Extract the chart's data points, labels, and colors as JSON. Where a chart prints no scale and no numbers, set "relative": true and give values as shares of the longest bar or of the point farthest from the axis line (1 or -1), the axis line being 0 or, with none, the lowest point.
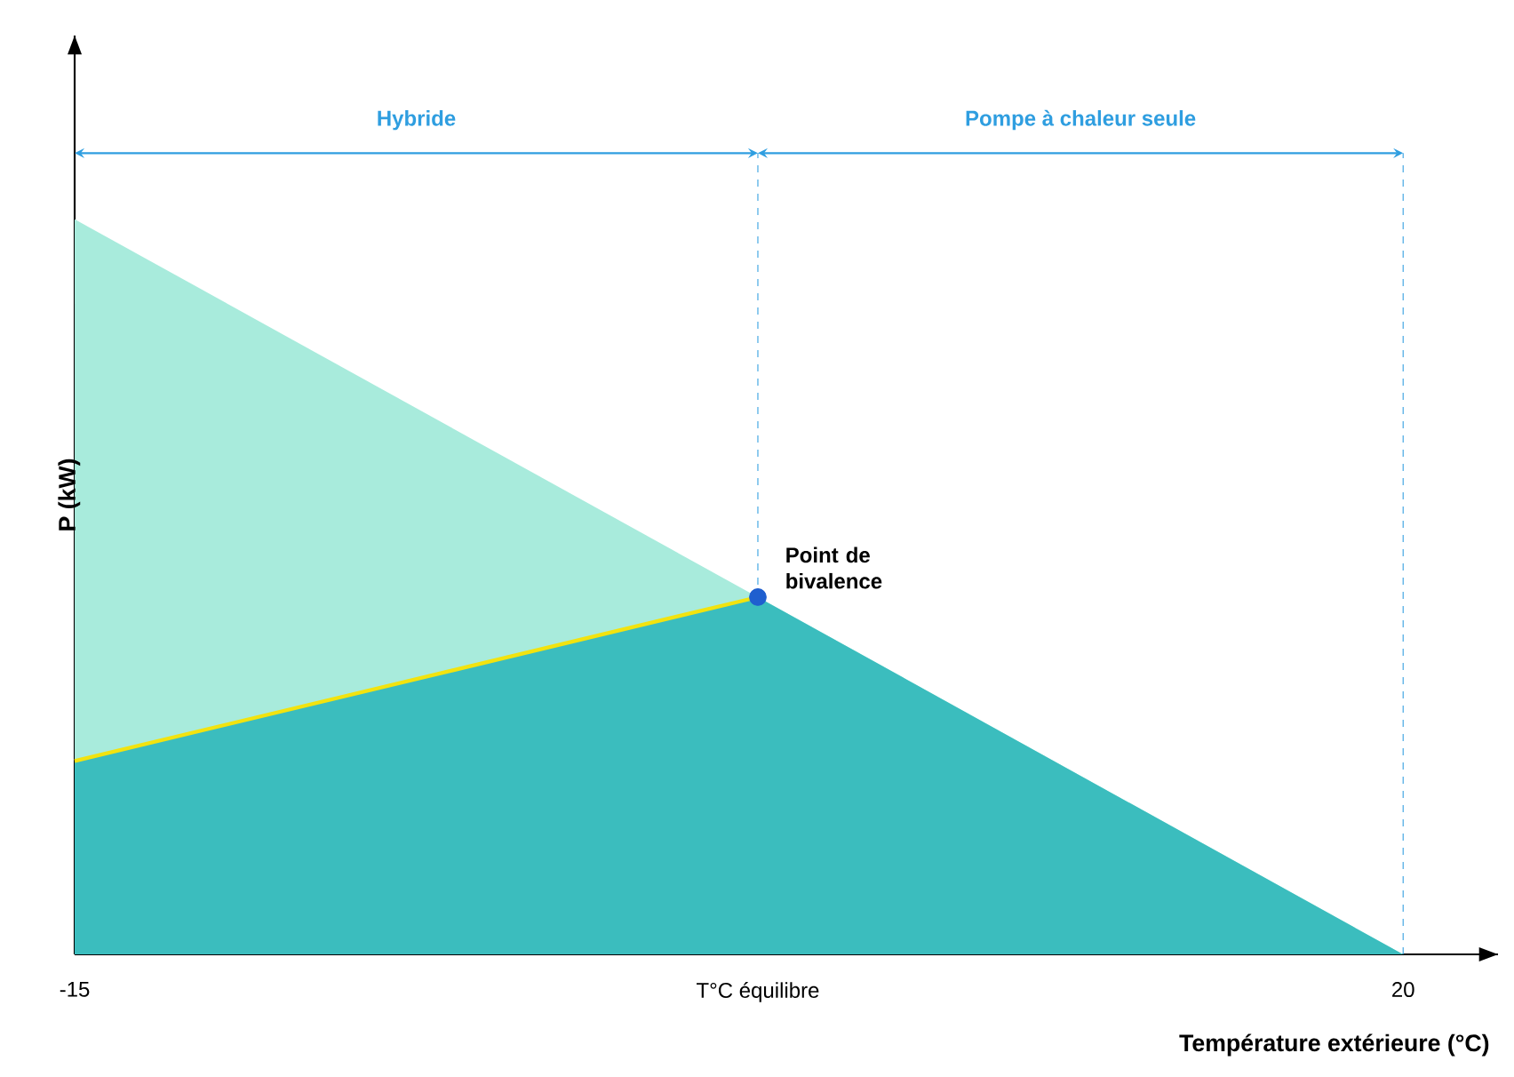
{
  "chart_data": {
    "type": "area",
    "relative": true,
    "xlabel": "Température extérieure (°C)",
    "ylabel": "P (kW)",
    "xlim": [
      -15,
      22.5
    ],
    "xticks": [
      -15,
      {
        "value": 3,
        "label": "T°C équilibre"
      },
      20
    ],
    "series": [
      {
        "color": "#a8ebdc",
        "x": [
          -15,
          3,
          20
        ],
        "values": [
          1,
          0.486,
          0
        ]
      },
      {
        "color": "#3bbdbe",
        "x": [
          -15,
          3,
          20
        ],
        "values": [
          0.263,
          0.486,
          0
        ]
      },
      {
        "type": "line",
        "color": "#f2e30f",
        "x": [
          -15,
          3
        ],
        "values": [
          0.263,
          0.486
        ]
      },
      {
        "type": "scatter",
        "color": "#1f5fcf",
        "x": [
          3
        ],
        "values": [
          0.486
        ]
      }
    ],
    "ref_lines": [
      {
        "axis": "x",
        "value": 3,
        "color": "#2f9ee0",
        "line_style": "dashed"
      },
      {
        "axis": "x",
        "value": 20,
        "color": "#2f9ee0",
        "line_style": "dashed"
      }
    ],
    "annotations": [
      "Hybride",
      "Pompe à chaleur seule",
      {
        "text": "Point de bivalence",
        "x": 3,
        "y": 0.486
      }
    ]
  }
}
